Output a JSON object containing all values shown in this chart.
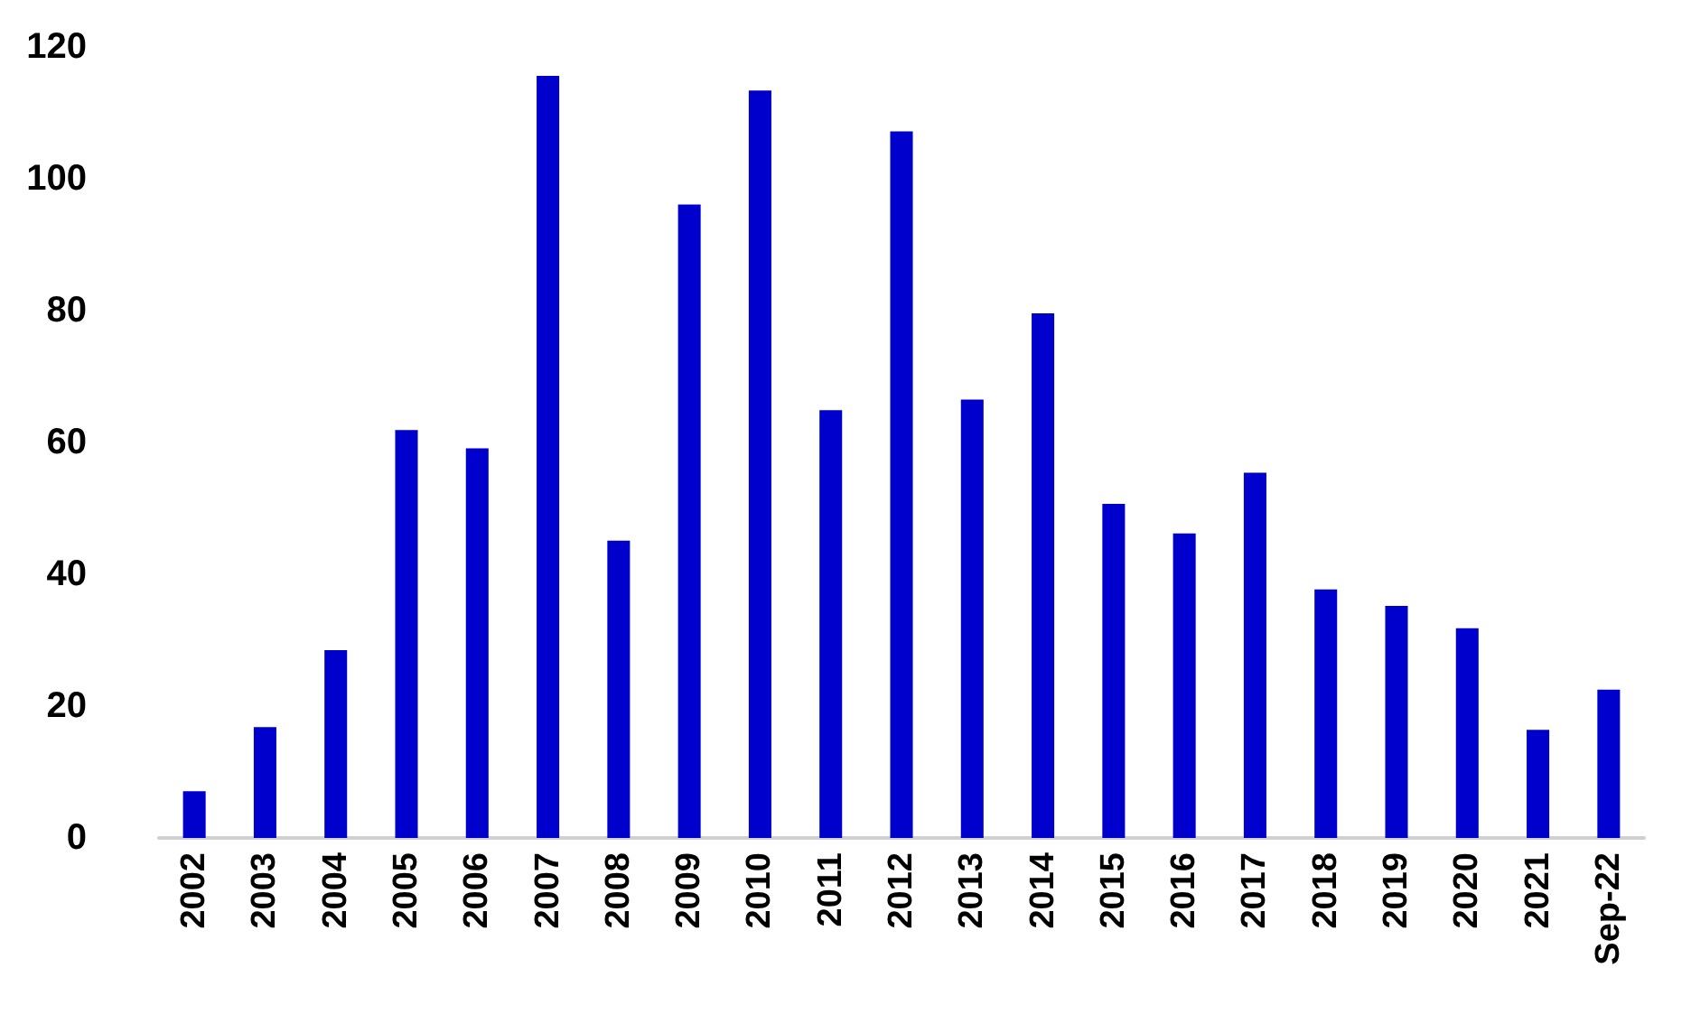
{
  "chart_data": {
    "type": "bar",
    "categories": [
      "2002",
      "2003",
      "2004",
      "2005",
      "2006",
      "2007",
      "2008",
      "2009",
      "2010",
      "2011",
      "2012",
      "2013",
      "2014",
      "2015",
      "2016",
      "2017",
      "2018",
      "2019",
      "2020",
      "2021",
      "Sep-22"
    ],
    "values": [
      7.1,
      16.8,
      28.5,
      61.9,
      59.1,
      115.6,
      45.1,
      96.1,
      113.4,
      64.9,
      107.2,
      66.5,
      79.6,
      50.7,
      46.2,
      55.4,
      37.7,
      35.2,
      31.8,
      16.4,
      22.5
    ],
    "color": "#0000cc",
    "ylim": [
      0,
      120
    ],
    "yticks": [
      0,
      20,
      40,
      60,
      80,
      100,
      120
    ]
  }
}
